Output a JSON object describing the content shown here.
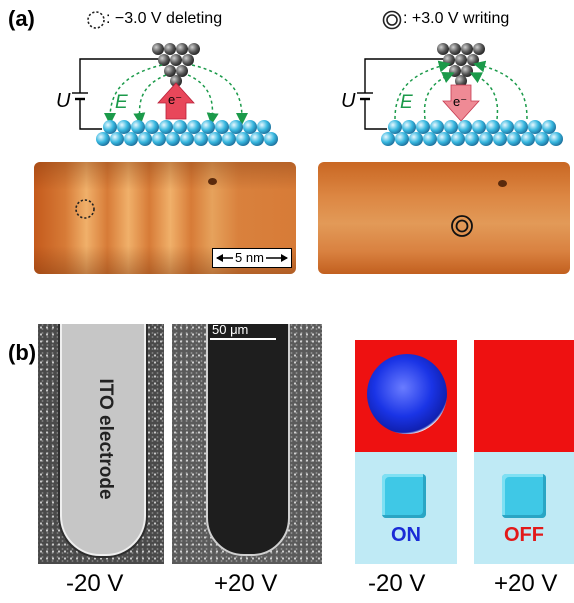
{
  "panel_a": {
    "label": "(a)",
    "left": {
      "legend": ": −3.0 V deleting",
      "voltage_symbol": "U",
      "field_symbol": "E",
      "electron": "e⁻",
      "scale_bar": "5 nm"
    },
    "right": {
      "legend": ": +3.0 V writing",
      "voltage_symbol": "U",
      "field_symbol": "E",
      "electron": "e⁻"
    }
  },
  "panel_b": {
    "label": "(b)",
    "electrode_label": "ITO electrode",
    "scale_bar": "50 μm",
    "sem_voltages": [
      "-20 V",
      "+20 V"
    ],
    "display_states": [
      "ON",
      "OFF"
    ],
    "display_voltages": [
      "-20 V",
      "+20 V"
    ]
  },
  "colors": {
    "atom_gray": "#555555",
    "atom_blue": "#38b8e0",
    "field_green": "#1b9a4a",
    "arrow_red": "#e8475a",
    "stm_orange": "#d9772f",
    "display_red": "#ee1111",
    "display_cyan": "#bfeaf5",
    "on_blue": "#1a2bd6",
    "off_red": "#e21a1a"
  }
}
